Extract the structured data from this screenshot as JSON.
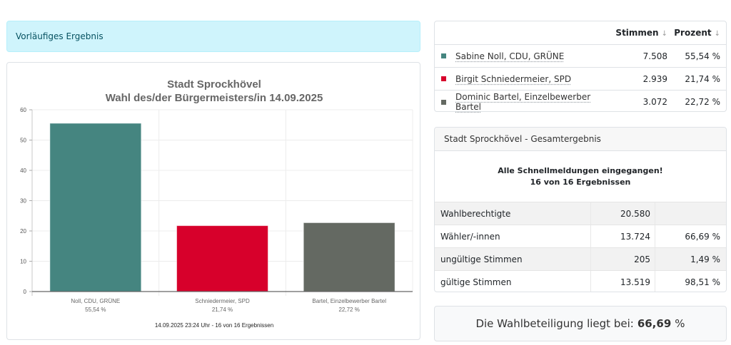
{
  "alert": {
    "text": "Vorläufiges Ergebnis"
  },
  "chart_data": {
    "type": "bar",
    "title": "Stadt Sprockhövel",
    "subtitle": "Wahl des/der Bürgermeisters/in 14.09.2025",
    "categories": [
      "Noll, CDU, GRÜNE",
      "Schniedermeier, SPD",
      "Bartel, Einzelbewerber Bartel"
    ],
    "category_sublabels": [
      "55,54 %",
      "21,74 %",
      "22,72 %"
    ],
    "values": [
      55.54,
      21.74,
      22.72
    ],
    "colors": [
      "#458580",
      "#d7002b",
      "#646962"
    ],
    "ylim": [
      0,
      60
    ],
    "yticks": [
      0,
      10,
      20,
      30,
      40,
      50,
      60
    ],
    "xlabel": "",
    "ylabel": "",
    "grid": true,
    "footer": "14.09.2025 23:24 Uhr - 16 von 16 Ergebnissen"
  },
  "results_table": {
    "headers": {
      "votes": "Stimmen",
      "percent": "Prozent"
    },
    "rows": [
      {
        "name": "Sabine Noll, CDU, GRÜNE",
        "votes": "7.508",
        "percent": "55,54 %",
        "color": "#458580"
      },
      {
        "name": "Birgit Schniedermeier, SPD",
        "votes": "2.939",
        "percent": "21,74 %",
        "color": "#d7002b"
      },
      {
        "name": "Dominic Bartel, Einzelbewerber Bartel",
        "votes": "3.072",
        "percent": "22,72 %",
        "color": "#646962"
      }
    ]
  },
  "total": {
    "header": "Stadt Sprockhövel - Gesamtergebnis",
    "message_line1": "Alle Schnellmeldungen eingegangen!",
    "message_line2": "16 von 16 Ergebnissen",
    "rows": [
      {
        "label": "Wahlberechtigte",
        "value": "20.580",
        "percent": ""
      },
      {
        "label": "Wähler/-innen",
        "value": "13.724",
        "percent": "66,69 %"
      },
      {
        "label": "ungültige Stimmen",
        "value": "205",
        "percent": "1,49 %"
      },
      {
        "label": "gültige Stimmen",
        "value": "13.519",
        "percent": "98,51 %"
      }
    ]
  },
  "turnout": {
    "prefix": "Die Wahlbeteiligung liegt bei:",
    "value": "66,69",
    "suffix": "%"
  }
}
